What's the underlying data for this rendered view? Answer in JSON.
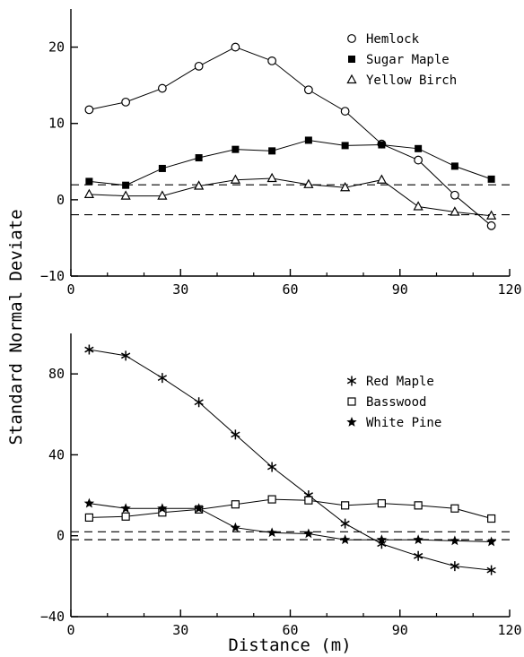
{
  "figure": {
    "ylabel": "Standard Normal Deviate",
    "xlabel": "Distance (m)"
  },
  "chart_data": [
    {
      "type": "line",
      "xlim": [
        0,
        120
      ],
      "ylim": [
        -10,
        25
      ],
      "x_ticks": [
        0,
        30,
        60,
        90,
        120
      ],
      "y_ticks": [
        -10,
        0,
        10,
        20
      ],
      "x_tick_labels": [
        "0",
        "30",
        "60",
        "90",
        "120"
      ],
      "y_tick_labels": [
        "−10",
        "0",
        "10",
        "20"
      ],
      "reference_lines": [
        1.96,
        -1.96
      ],
      "legend_placement": "top-right",
      "x": [
        5,
        15,
        25,
        35,
        45,
        55,
        65,
        75,
        85,
        95,
        105,
        115
      ],
      "series": [
        {
          "name": "Hemlock",
          "marker": "open-circle",
          "values": [
            11.8,
            12.8,
            14.6,
            17.5,
            20.0,
            18.2,
            14.4,
            11.6,
            7.3,
            5.2,
            0.6,
            -3.4
          ]
        },
        {
          "name": "Sugar Maple",
          "marker": "filled-square",
          "values": [
            2.4,
            1.9,
            4.1,
            5.5,
            6.6,
            6.4,
            7.8,
            7.1,
            7.2,
            6.7,
            4.4,
            2.7
          ]
        },
        {
          "name": "Yellow Birch",
          "marker": "open-triangle",
          "values": [
            0.7,
            0.5,
            0.5,
            1.8,
            2.6,
            2.8,
            2.0,
            1.6,
            2.6,
            -0.9,
            -1.6,
            -2.1
          ]
        }
      ]
    },
    {
      "type": "line",
      "xlim": [
        0,
        120
      ],
      "ylim": [
        -40,
        100
      ],
      "x_ticks": [
        0,
        30,
        60,
        90,
        120
      ],
      "y_ticks": [
        -40,
        0,
        40,
        80
      ],
      "x_tick_labels": [
        "0",
        "30",
        "60",
        "90",
        "120"
      ],
      "y_tick_labels": [
        "−40",
        "0",
        "40",
        "80"
      ],
      "reference_lines": [
        1.96,
        -1.96
      ],
      "legend_placement": "top-right",
      "x": [
        5,
        15,
        25,
        35,
        45,
        55,
        65,
        75,
        85,
        95,
        105,
        115
      ],
      "series": [
        {
          "name": "Red Maple",
          "marker": "asterisk",
          "values": [
            92,
            89,
            78,
            66,
            50,
            34,
            20,
            6,
            -4,
            -10,
            -15,
            -17
          ]
        },
        {
          "name": "Basswood",
          "marker": "open-square",
          "values": [
            9,
            9.5,
            11.5,
            13,
            15.5,
            18,
            17.5,
            15,
            16,
            15,
            13.5,
            8.5
          ]
        },
        {
          "name": "White Pine",
          "marker": "filled-star",
          "values": [
            16,
            13.5,
            13.5,
            13.5,
            4,
            1.5,
            1,
            -2,
            -2,
            -2,
            -2.5,
            -3
          ]
        }
      ]
    }
  ]
}
